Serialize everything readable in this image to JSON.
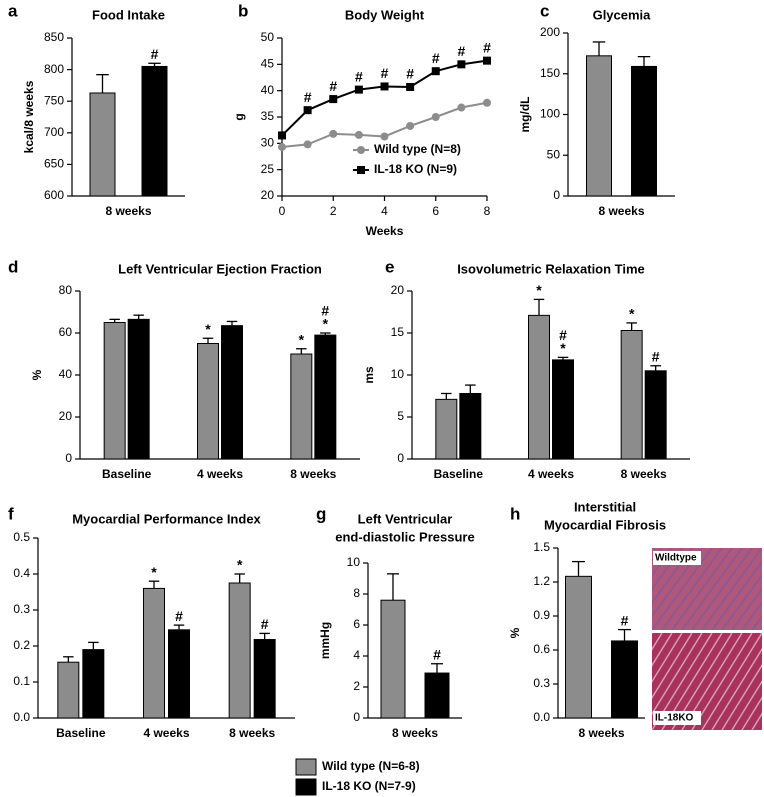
{
  "chart_data": [
    {
      "type": "bar",
      "label": "a",
      "title": "Food Intake",
      "ylabel": "kcal/8 weeks",
      "categories": [
        "8 weeks"
      ],
      "ylim": [
        600,
        850
      ],
      "yticks": [
        600,
        650,
        700,
        750,
        800,
        850
      ],
      "series": [
        {
          "color": "#8c8c8c",
          "values": [
            763
          ],
          "errors": [
            29
          ],
          "annotations": [
            null
          ]
        },
        {
          "color": "#000000",
          "values": [
            805
          ],
          "errors": [
            5
          ],
          "annotations": [
            [
              "#"
            ]
          ]
        }
      ]
    },
    {
      "type": "line",
      "label": "b",
      "title": "Body Weight",
      "ylabel": "g",
      "xlabel": "Weeks",
      "x": [
        0,
        1,
        2,
        3,
        4,
        5,
        6,
        7,
        8
      ],
      "xlim": [
        0,
        8
      ],
      "xticks": [
        0,
        2,
        4,
        6,
        8
      ],
      "ylim": [
        20,
        50
      ],
      "yticks": [
        20,
        25,
        30,
        35,
        40,
        45,
        50
      ],
      "legend": "lower right",
      "series": [
        {
          "name": "Wild type (N=8)",
          "color": "#8c8c8c",
          "marker": "circle",
          "values": [
            29.3,
            29.8,
            31.8,
            31.6,
            31.3,
            33.3,
            35.0,
            36.8,
            37.7
          ],
          "annotations": [
            null,
            null,
            null,
            null,
            null,
            null,
            null,
            null,
            null
          ]
        },
        {
          "name": "IL-18 KO (N=9)",
          "color": "#000000",
          "marker": "square",
          "values": [
            31.5,
            36.3,
            38.4,
            40.2,
            40.8,
            40.7,
            43.7,
            45.0,
            45.7
          ],
          "annotations": [
            null,
            [
              "#"
            ],
            [
              "#"
            ],
            [
              "#"
            ],
            [
              "#"
            ],
            [
              "#"
            ],
            [
              "#"
            ],
            [
              "#"
            ],
            [
              "#"
            ]
          ]
        }
      ]
    },
    {
      "type": "bar",
      "label": "c",
      "title": "Glycemia",
      "ylabel": "mg/dL",
      "categories": [
        "8 weeks"
      ],
      "ylim": [
        0,
        200
      ],
      "yticks": [
        0,
        50,
        100,
        150,
        200
      ],
      "series": [
        {
          "color": "#8c8c8c",
          "values": [
            172
          ],
          "errors": [
            17
          ],
          "annotations": [
            null
          ]
        },
        {
          "color": "#000000",
          "values": [
            159
          ],
          "errors": [
            12
          ],
          "annotations": [
            null
          ]
        }
      ]
    },
    {
      "type": "bar",
      "label": "d",
      "title": "Left Ventricular Ejection Fraction",
      "ylabel": "%",
      "categories": [
        "Baseline",
        "4 weeks",
        "8 weeks"
      ],
      "ylim": [
        0,
        80
      ],
      "yticks": [
        0,
        20,
        40,
        60,
        80
      ],
      "series": [
        {
          "color": "#8c8c8c",
          "values": [
            65,
            55,
            50
          ],
          "errors": [
            1.5,
            2.5,
            2.5
          ],
          "annotations": [
            null,
            [
              "*"
            ],
            [
              "*"
            ]
          ]
        },
        {
          "color": "#000000",
          "values": [
            66.5,
            63.5,
            59
          ],
          "errors": [
            2,
            2,
            1
          ],
          "annotations": [
            null,
            null,
            [
              "#",
              "*"
            ]
          ]
        }
      ]
    },
    {
      "type": "bar",
      "label": "e",
      "title": "Isovolumetric Relaxation Time",
      "ylabel": "ms",
      "categories": [
        "Baseline",
        "4 weeks",
        "8 weeks"
      ],
      "ylim": [
        0,
        20
      ],
      "yticks": [
        0,
        5,
        10,
        15,
        20
      ],
      "series": [
        {
          "color": "#8c8c8c",
          "values": [
            7.1,
            17.1,
            15.3
          ],
          "errors": [
            0.7,
            1.9,
            0.9
          ],
          "annotations": [
            null,
            [
              "*"
            ],
            [
              "*"
            ]
          ]
        },
        {
          "color": "#000000",
          "values": [
            7.8,
            11.8,
            10.5
          ],
          "errors": [
            1.0,
            0.3,
            0.6
          ],
          "annotations": [
            null,
            [
              "#",
              "*"
            ],
            [
              "#"
            ]
          ]
        }
      ]
    },
    {
      "type": "bar",
      "label": "f",
      "title": "Myocardial Performance Index",
      "categories": [
        "Baseline",
        "4 weeks",
        "8 weeks"
      ],
      "ylim": [
        0,
        0.5
      ],
      "yticks": [
        {
          "value": 0,
          "label": "0.0"
        },
        0.1,
        0.2,
        0.3,
        0.4,
        0.5
      ],
      "series": [
        {
          "color": "#8c8c8c",
          "values": [
            0.155,
            0.36,
            0.375
          ],
          "errors": [
            0.015,
            0.02,
            0.025
          ],
          "annotations": [
            null,
            [
              "*"
            ],
            [
              "*"
            ]
          ]
        },
        {
          "color": "#000000",
          "values": [
            0.19,
            0.245,
            0.218
          ],
          "errors": [
            0.02,
            0.013,
            0.017
          ],
          "annotations": [
            null,
            [
              "#"
            ],
            [
              "#"
            ]
          ]
        }
      ]
    },
    {
      "type": "bar",
      "label": "g",
      "title": [
        "Left Ventricular",
        "end-diastolic Pressure"
      ],
      "ylabel": "mmHg",
      "categories": [
        "8 weeks"
      ],
      "ylim": [
        0,
        10
      ],
      "yticks": [
        0,
        2,
        4,
        6,
        8,
        10
      ],
      "series": [
        {
          "color": "#8c8c8c",
          "values": [
            7.6
          ],
          "errors": [
            1.7
          ],
          "annotations": [
            null
          ]
        },
        {
          "color": "#000000",
          "values": [
            2.9
          ],
          "errors": [
            0.6
          ],
          "annotations": [
            [
              "#"
            ]
          ]
        }
      ]
    },
    {
      "type": "bar",
      "label": "h",
      "title": [
        "Interstitial",
        "Myocardial Fibrosis"
      ],
      "ylabel": "%",
      "categories": [
        "8 weeks"
      ],
      "ylim": [
        0,
        1.5
      ],
      "yticks": [
        {
          "value": 0,
          "label": "0.0"
        },
        0.3,
        0.6,
        0.9,
        1.2,
        1.5
      ],
      "image_labels": [
        "Wildtype",
        "IL-18KO"
      ],
      "series": [
        {
          "color": "#8c8c8c",
          "values": [
            1.25
          ],
          "errors": [
            0.13
          ],
          "annotations": [
            null
          ]
        },
        {
          "color": "#000000",
          "values": [
            0.68
          ],
          "errors": [
            0.1
          ],
          "annotations": [
            [
              "#"
            ]
          ]
        }
      ]
    }
  ],
  "legend": [
    {
      "name": "Wild type (N=6-8)",
      "color": "#8c8c8c"
    },
    {
      "name": "IL-18 KO (N=7-9)",
      "color": "#000000"
    }
  ]
}
